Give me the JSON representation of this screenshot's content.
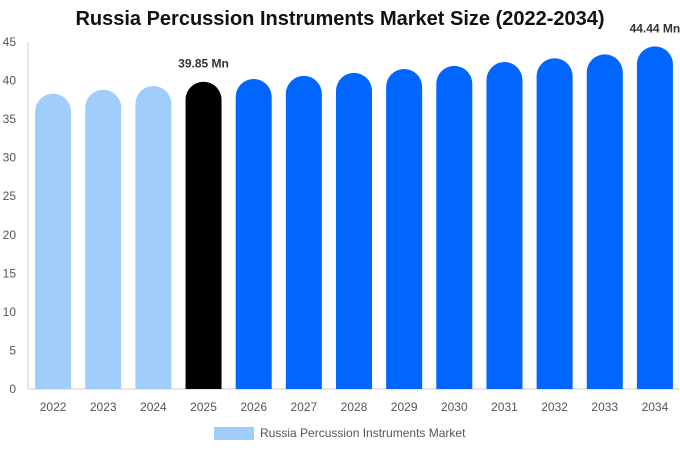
{
  "chart_data": {
    "type": "bar",
    "title": "Russia Percussion Instruments Market Size (2022-2034)",
    "xlabel": "",
    "ylabel": "",
    "categories": [
      "2022",
      "2023",
      "2024",
      "2025",
      "2026",
      "2027",
      "2028",
      "2029",
      "2030",
      "2031",
      "2032",
      "2033",
      "2034"
    ],
    "series": [
      {
        "name": "Russia Percussion Instruments Market",
        "values": [
          38.3,
          38.8,
          39.3,
          39.85,
          40.2,
          40.6,
          41.0,
          41.5,
          41.9,
          42.4,
          42.9,
          43.4,
          44.44
        ]
      }
    ],
    "ylim": [
      0,
      45
    ],
    "yticks": [
      0,
      5,
      10,
      15,
      20,
      25,
      30,
      35,
      40,
      45
    ],
    "data_labels": [
      {
        "category": "2025",
        "text": "39.85 Mn"
      },
      {
        "category": "2034",
        "text": "44.44 Mn"
      }
    ],
    "bar_colors": {
      "historical": "#a0cdfc",
      "current": "#000000",
      "forecast": "#0066ff"
    },
    "bar_color_by_category": [
      "historical",
      "historical",
      "historical",
      "current",
      "forecast",
      "forecast",
      "forecast",
      "forecast",
      "forecast",
      "forecast",
      "forecast",
      "forecast",
      "forecast"
    ],
    "legend": {
      "position": "bottom-center",
      "swatch_color": "#a0cdfc"
    },
    "grid": false
  }
}
